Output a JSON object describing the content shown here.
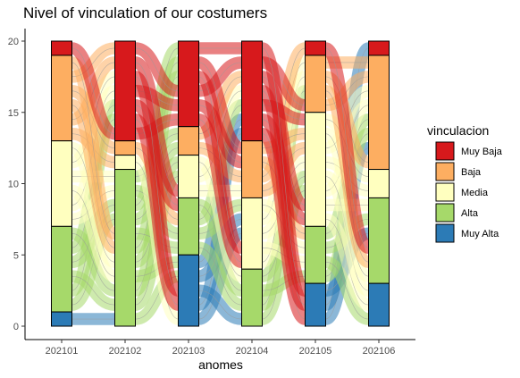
{
  "chart_data": {
    "type": "alluvial",
    "title": "Nivel of vinculation of our costumers",
    "xlabel": "anomes",
    "ylabel": "",
    "ylim": [
      0,
      20
    ],
    "yticks": [
      "0",
      "5",
      "10",
      "15",
      "20"
    ],
    "categories": [
      "202101",
      "202102",
      "202103",
      "202104",
      "202105",
      "202106"
    ],
    "legend": {
      "title": "vinculacion",
      "position": "right",
      "entries": [
        "Muy Baja",
        "Baja",
        "Media",
        "Alta",
        "Muy Alta"
      ]
    },
    "colors": {
      "Muy Baja": "#d7191c",
      "Baja": "#fdae61",
      "Media": "#ffffbf",
      "Alta": "#a6d96a",
      "Muy Alta": "#2c7bb6"
    },
    "stack_order_top_to_bottom": [
      "Muy Baja",
      "Baja",
      "Media",
      "Alta",
      "Muy Alta"
    ],
    "series": [
      {
        "name": "Muy Baja",
        "values": [
          1,
          7,
          6,
          7,
          1,
          1
        ]
      },
      {
        "name": "Baja",
        "values": [
          6,
          1,
          2,
          4,
          4,
          8
        ]
      },
      {
        "name": "Media",
        "values": [
          6,
          1,
          3,
          5,
          8,
          2
        ]
      },
      {
        "name": "Alta",
        "values": [
          6,
          11,
          4,
          4,
          4,
          6
        ]
      },
      {
        "name": "Muy Alta",
        "values": [
          1,
          0,
          5,
          0,
          3,
          3
        ]
      }
    ],
    "grid": false
  }
}
